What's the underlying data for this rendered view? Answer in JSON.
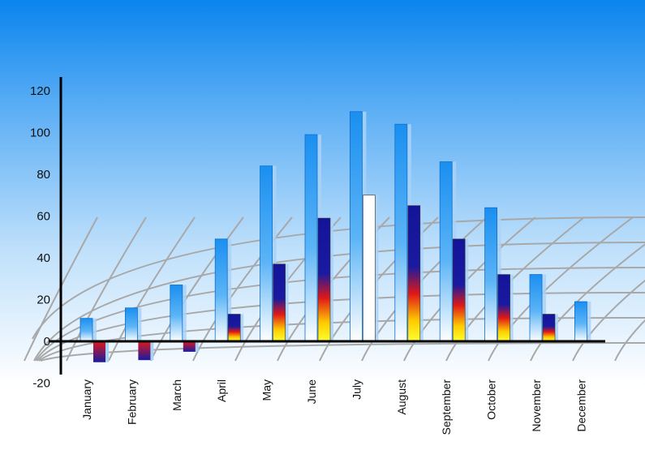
{
  "chart_data": {
    "type": "bar",
    "title": "",
    "xlabel": "",
    "ylabel": "",
    "ylim": [
      -20,
      120
    ],
    "yticks": [
      "-20",
      "0",
      "20",
      "40",
      "60",
      "80",
      "100",
      "120"
    ],
    "categories": [
      "January",
      "February",
      "March",
      "April",
      "May",
      "June",
      "July",
      "August",
      "September",
      "October",
      "November",
      "December"
    ],
    "series": [
      {
        "values": [
          11,
          16,
          27,
          49,
          84,
          99,
          110,
          104,
          86,
          64,
          32,
          19
        ],
        "color": "#1a8ff0"
      },
      {
        "values": [
          -10,
          -9,
          -5,
          13,
          37,
          59,
          70,
          65,
          49,
          32,
          13,
          null
        ],
        "color": "#1a1aa0"
      }
    ],
    "grid": false,
    "legend": "none"
  }
}
